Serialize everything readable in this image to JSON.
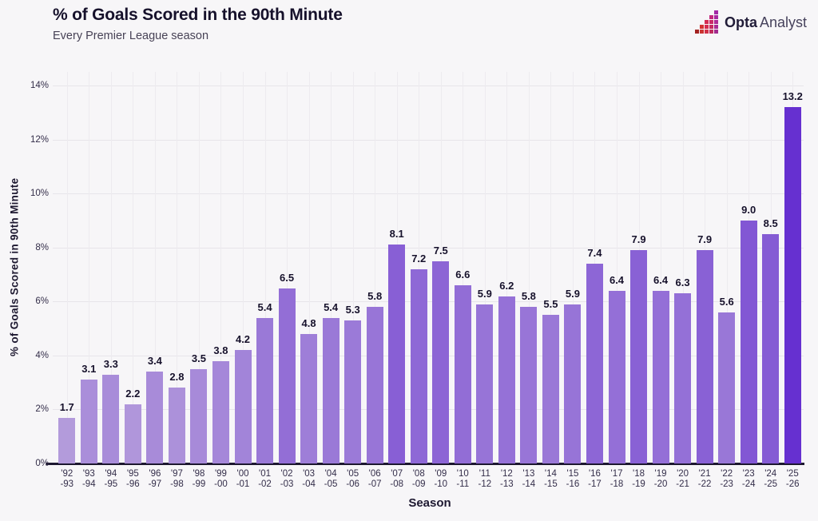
{
  "header": {
    "title": "% of Goals Scored in the 90th Minute",
    "subtitle": "Every Premier League season",
    "brand": {
      "name_bold": "Opta",
      "name_light": "Analyst",
      "mark_pixels": [
        "",
        "",
        "",
        "",
        "#a328a5",
        "",
        "",
        "",
        "#c3277d",
        "#a828a0",
        "",
        "",
        "#d42c52",
        "#c92967",
        "#ad2a97",
        "",
        "#d43231",
        "#d52c4f",
        "#c52a62",
        "#a82b93",
        "#a32222",
        "#cb3332",
        "#d03048",
        "#bf2a5e",
        "#a22b8e"
      ]
    }
  },
  "chart_data": {
    "type": "bar",
    "title": "% of Goals Scored in the 90th Minute",
    "subtitle": "Every Premier League season",
    "xlabel": "Season",
    "ylabel": "% of Goals Scored in 90th Minute",
    "categories": [
      {
        "top": "'92",
        "bottom": "-93"
      },
      {
        "top": "'93",
        "bottom": "-94"
      },
      {
        "top": "'94",
        "bottom": "-95"
      },
      {
        "top": "'95",
        "bottom": "-96"
      },
      {
        "top": "'96",
        "bottom": "-97"
      },
      {
        "top": "'97",
        "bottom": "-98"
      },
      {
        "top": "'98",
        "bottom": "-99"
      },
      {
        "top": "'99",
        "bottom": "-00"
      },
      {
        "top": "'00",
        "bottom": "-01"
      },
      {
        "top": "'01",
        "bottom": "-02"
      },
      {
        "top": "'02",
        "bottom": "-03"
      },
      {
        "top": "'03",
        "bottom": "-04"
      },
      {
        "top": "'04",
        "bottom": "-05"
      },
      {
        "top": "'05",
        "bottom": "-06"
      },
      {
        "top": "'06",
        "bottom": "-07"
      },
      {
        "top": "'07",
        "bottom": "-08"
      },
      {
        "top": "'08",
        "bottom": "-09"
      },
      {
        "top": "'09",
        "bottom": "-10"
      },
      {
        "top": "'10",
        "bottom": "-11"
      },
      {
        "top": "'11",
        "bottom": "-12"
      },
      {
        "top": "'12",
        "bottom": "-13"
      },
      {
        "top": "'13",
        "bottom": "-14"
      },
      {
        "top": "'14",
        "bottom": "-15"
      },
      {
        "top": "'15",
        "bottom": "-16"
      },
      {
        "top": "'16",
        "bottom": "-17"
      },
      {
        "top": "'17",
        "bottom": "-18"
      },
      {
        "top": "'18",
        "bottom": "-19"
      },
      {
        "top": "'19",
        "bottom": "-20"
      },
      {
        "top": "'20",
        "bottom": "-21"
      },
      {
        "top": "'21",
        "bottom": "-22"
      },
      {
        "top": "'22",
        "bottom": "-23"
      },
      {
        "top": "'23",
        "bottom": "-24"
      },
      {
        "top": "'24",
        "bottom": "-25"
      },
      {
        "top": "'25",
        "bottom": "-26"
      }
    ],
    "values": [
      1.7,
      3.1,
      3.3,
      2.2,
      3.4,
      2.8,
      3.5,
      3.8,
      4.2,
      5.4,
      6.5,
      4.8,
      5.4,
      5.3,
      5.8,
      8.1,
      7.2,
      7.5,
      6.6,
      5.9,
      6.2,
      5.8,
      5.5,
      5.9,
      7.4,
      6.4,
      7.9,
      6.4,
      6.3,
      7.9,
      5.6,
      9.0,
      8.5,
      13.2
    ],
    "ylim": [
      0,
      14.57
    ],
    "ytick_values": [
      0,
      2,
      4,
      6,
      8,
      10,
      12,
      14
    ],
    "ytick_suffix": "%",
    "grid": true,
    "legend": null,
    "color_scale": {
      "low": "#b39bdb",
      "high": "#6630d0"
    }
  }
}
